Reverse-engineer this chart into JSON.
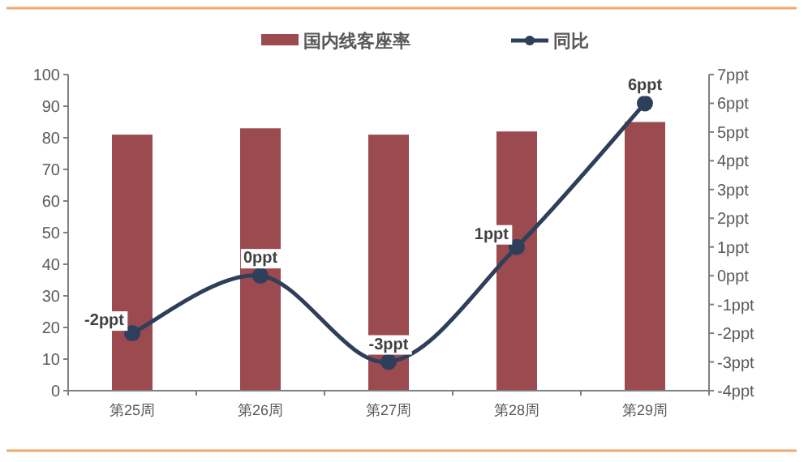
{
  "chart_data": {
    "type": "bar",
    "categories": [
      "第25周",
      "第26周",
      "第27周",
      "第28周",
      "第29周"
    ],
    "series": [
      {
        "name": "国内线客座率",
        "color": "#9b4a4f",
        "values": [
          81,
          83,
          81,
          82,
          85
        ]
      },
      {
        "name": "同比",
        "type": "line",
        "axis": "y2",
        "color": "#2e3f5c",
        "values": [
          -2,
          0,
          -3,
          1,
          6
        ],
        "value_labels": [
          "-2ppt",
          "0ppt",
          "-3ppt",
          "1ppt",
          "6ppt"
        ]
      }
    ],
    "ylim": [
      0,
      100
    ],
    "yticks": [
      0,
      10,
      20,
      30,
      40,
      50,
      60,
      70,
      80,
      90,
      100
    ],
    "y2lim": [
      -4,
      7
    ],
    "y2ticks": [
      {
        "value": -4,
        "label": "-4ppt"
      },
      {
        "value": -3,
        "label": "-3ppt"
      },
      {
        "value": -2,
        "label": "-2ppt"
      },
      {
        "value": -1,
        "label": "-1ppt"
      },
      {
        "value": 0,
        "label": "0ppt"
      },
      {
        "value": 1,
        "label": "1ppt"
      },
      {
        "value": 2,
        "label": "2ppt"
      },
      {
        "value": 3,
        "label": "3ppt"
      },
      {
        "value": 4,
        "label": "4ppt"
      },
      {
        "value": 5,
        "label": "5ppt"
      },
      {
        "value": 6,
        "label": "6ppt"
      },
      {
        "value": 7,
        "label": "7ppt"
      }
    ],
    "legend": "top",
    "grid": false,
    "marker": "circle"
  }
}
